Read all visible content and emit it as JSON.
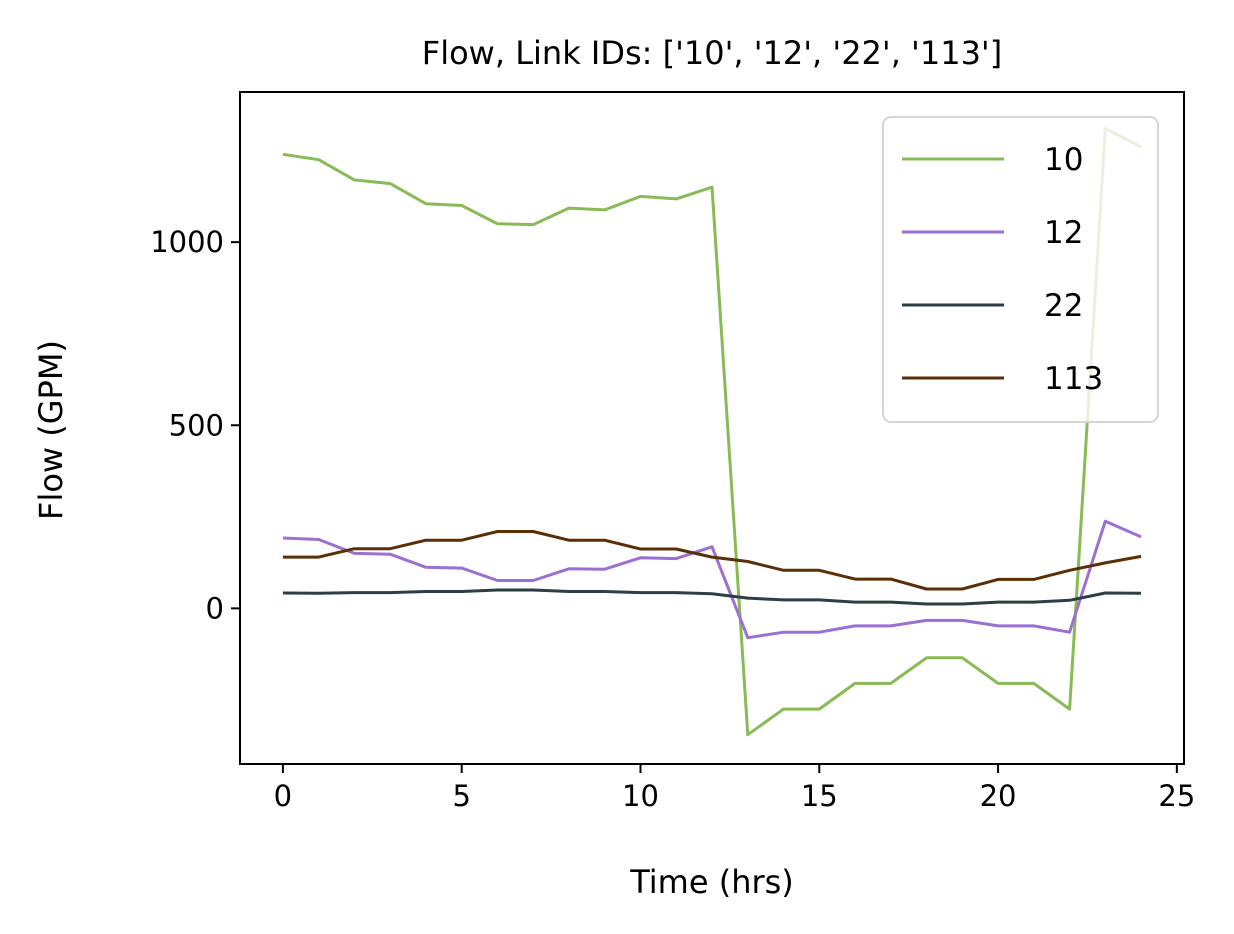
{
  "chart_data": {
    "type": "line",
    "title": "Flow, Link IDs: ['10', '12', '22', '113']",
    "xlabel": "Time (hrs)",
    "ylabel": "Flow (GPM)",
    "xlim": [
      -1.2,
      25.2
    ],
    "ylim": [
      -425,
      1410
    ],
    "xticks": [
      0,
      5,
      10,
      15,
      20,
      25
    ],
    "yticks": [
      0,
      500,
      1000
    ],
    "grid": false,
    "legend_position": "top-right",
    "x": [
      0,
      1,
      2,
      3,
      4,
      5,
      6,
      7,
      8,
      9,
      10,
      11,
      12,
      13,
      14,
      15,
      16,
      17,
      18,
      19,
      20,
      21,
      22,
      23,
      24
    ],
    "series": [
      {
        "name": "10",
        "color": "#88bb55",
        "values": [
          1240,
          1225,
          1170,
          1160,
          1105,
          1100,
          1050,
          1048,
          1093,
          1088,
          1125,
          1118,
          1150,
          -345,
          -275,
          -275,
          -205,
          -205,
          -135,
          -135,
          -205,
          -205,
          -275,
          1310,
          1260
        ]
      },
      {
        "name": "12",
        "color": "#9b6fd3",
        "values": [
          192,
          188,
          150,
          148,
          112,
          110,
          76,
          76,
          108,
          107,
          138,
          136,
          168,
          -80,
          -65,
          -65,
          -48,
          -48,
          -33,
          -33,
          -48,
          -48,
          -65,
          238,
          195
        ]
      },
      {
        "name": "22",
        "color": "#2b3f44",
        "values": [
          42,
          41,
          43,
          43,
          46,
          46,
          50,
          50,
          46,
          46,
          43,
          43,
          40,
          28,
          23,
          23,
          17,
          17,
          12,
          12,
          17,
          17,
          22,
          42,
          41
        ]
      },
      {
        "name": "113",
        "color": "#5c2e06",
        "values": [
          140,
          140,
          163,
          163,
          186,
          186,
          210,
          210,
          186,
          186,
          162,
          162,
          140,
          128,
          104,
          104,
          80,
          80,
          53,
          53,
          79,
          79,
          104,
          124,
          142
        ]
      }
    ]
  }
}
